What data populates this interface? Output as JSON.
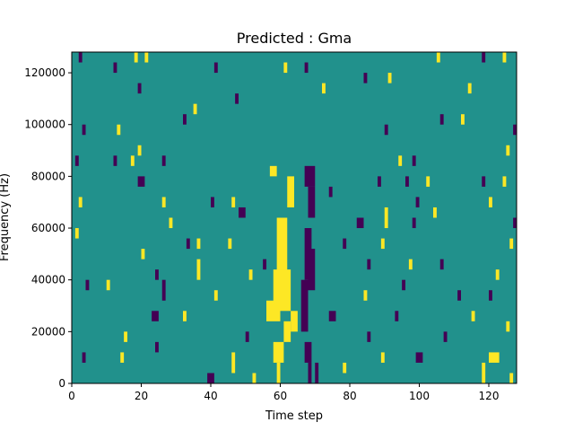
{
  "chart_data": {
    "type": "heatmap",
    "title": "Predicted : Gma",
    "xlabel": "Time step",
    "ylabel": "Frequency (Hz)",
    "xlim": [
      0,
      128
    ],
    "ylim": [
      0,
      128000
    ],
    "x_ticks": [
      0,
      20,
      40,
      60,
      80,
      100,
      120
    ],
    "x_tick_labels": [
      "0",
      "20",
      "40",
      "60",
      "80",
      "100",
      "120"
    ],
    "y_ticks": [
      0,
      20000,
      40000,
      60000,
      80000,
      100000,
      120000
    ],
    "y_tick_labels": [
      "0",
      "20000",
      "40000",
      "60000",
      "80000",
      "100000",
      "120000"
    ],
    "n_freq_bins": 128,
    "freq_bin_width_hz": 1000,
    "value_levels": [
      -1,
      0,
      1
    ],
    "colormap": {
      "-1": "#440154",
      "0": "#21918c",
      "1": "#fde725"
    },
    "background_value": 0,
    "grid": false,
    "legend": "none",
    "cells": [
      {
        "t": [
          2,
          3
        ],
        "f": [
          124000,
          128000
        ],
        "value": -1
      },
      {
        "t": [
          12,
          13
        ],
        "f": [
          120000,
          124000
        ],
        "value": -1
      },
      {
        "t": [
          18,
          19
        ],
        "f": [
          124000,
          128000
        ],
        "value": 1
      },
      {
        "t": [
          21,
          22
        ],
        "f": [
          124000,
          128000
        ],
        "value": 1
      },
      {
        "t": [
          41,
          42
        ],
        "f": [
          120000,
          124000
        ],
        "value": -1
      },
      {
        "t": [
          61,
          62
        ],
        "f": [
          120000,
          124000
        ],
        "value": 1
      },
      {
        "t": [
          67,
          68
        ],
        "f": [
          120000,
          124000
        ],
        "value": -1
      },
      {
        "t": [
          105,
          106
        ],
        "f": [
          124000,
          128000
        ],
        "value": 1
      },
      {
        "t": [
          118,
          119
        ],
        "f": [
          124000,
          128000
        ],
        "value": -1
      },
      {
        "t": [
          124,
          125
        ],
        "f": [
          124000,
          128000
        ],
        "value": 1
      },
      {
        "t": [
          19,
          20
        ],
        "f": [
          112000,
          116000
        ],
        "value": -1
      },
      {
        "t": [
          35,
          36
        ],
        "f": [
          104000,
          108000
        ],
        "value": 1
      },
      {
        "t": [
          47,
          48
        ],
        "f": [
          108000,
          112000
        ],
        "value": -1
      },
      {
        "t": [
          72,
          73
        ],
        "f": [
          112000,
          116000
        ],
        "value": 1
      },
      {
        "t": [
          84,
          85
        ],
        "f": [
          116000,
          120000
        ],
        "value": -1
      },
      {
        "t": [
          91,
          92
        ],
        "f": [
          116000,
          120000
        ],
        "value": 1
      },
      {
        "t": [
          114,
          115
        ],
        "f": [
          112000,
          116000
        ],
        "value": 1
      },
      {
        "t": [
          3,
          4
        ],
        "f": [
          96000,
          100000
        ],
        "value": -1
      },
      {
        "t": [
          13,
          14
        ],
        "f": [
          96000,
          100000
        ],
        "value": 1
      },
      {
        "t": [
          32,
          33
        ],
        "f": [
          100000,
          104000
        ],
        "value": -1
      },
      {
        "t": [
          90,
          91
        ],
        "f": [
          96000,
          100000
        ],
        "value": -1
      },
      {
        "t": [
          106,
          107
        ],
        "f": [
          100000,
          104000
        ],
        "value": -1
      },
      {
        "t": [
          112,
          113
        ],
        "f": [
          100000,
          104000
        ],
        "value": 1
      },
      {
        "t": [
          127,
          128
        ],
        "f": [
          96000,
          100000
        ],
        "value": -1
      },
      {
        "t": [
          1,
          2
        ],
        "f": [
          84000,
          88000
        ],
        "value": -1
      },
      {
        "t": [
          12,
          13
        ],
        "f": [
          84000,
          88000
        ],
        "value": -1
      },
      {
        "t": [
          17,
          18
        ],
        "f": [
          84000,
          88000
        ],
        "value": 1
      },
      {
        "t": [
          19,
          20
        ],
        "f": [
          88000,
          92000
        ],
        "value": 1
      },
      {
        "t": [
          26,
          27
        ],
        "f": [
          84000,
          88000
        ],
        "value": -1
      },
      {
        "t": [
          94,
          95
        ],
        "f": [
          84000,
          88000
        ],
        "value": 1
      },
      {
        "t": [
          98,
          99
        ],
        "f": [
          84000,
          88000
        ],
        "value": -1
      },
      {
        "t": [
          125,
          126
        ],
        "f": [
          88000,
          92000
        ],
        "value": 1
      },
      {
        "t": [
          19,
          21
        ],
        "f": [
          76000,
          80000
        ],
        "value": -1
      },
      {
        "t": [
          57,
          59
        ],
        "f": [
          80000,
          84000
        ],
        "value": 1
      },
      {
        "t": [
          67,
          70
        ],
        "f": [
          76000,
          84000
        ],
        "value": -1
      },
      {
        "t": [
          62,
          64
        ],
        "f": [
          68000,
          80000
        ],
        "value": 1
      },
      {
        "t": [
          68,
          70
        ],
        "f": [
          64000,
          76000
        ],
        "value": -1
      },
      {
        "t": [
          88,
          89
        ],
        "f": [
          76000,
          80000
        ],
        "value": -1
      },
      {
        "t": [
          96,
          97
        ],
        "f": [
          76000,
          80000
        ],
        "value": -1
      },
      {
        "t": [
          102,
          103
        ],
        "f": [
          76000,
          80000
        ],
        "value": 1
      },
      {
        "t": [
          118,
          119
        ],
        "f": [
          76000,
          80000
        ],
        "value": -1
      },
      {
        "t": [
          124,
          125
        ],
        "f": [
          76000,
          80000
        ],
        "value": 1
      },
      {
        "t": [
          2,
          3
        ],
        "f": [
          68000,
          72000
        ],
        "value": 1
      },
      {
        "t": [
          26,
          27
        ],
        "f": [
          68000,
          72000
        ],
        "value": 1
      },
      {
        "t": [
          40,
          41
        ],
        "f": [
          68000,
          72000
        ],
        "value": -1
      },
      {
        "t": [
          46,
          47
        ],
        "f": [
          68000,
          72000
        ],
        "value": 1
      },
      {
        "t": [
          74,
          75
        ],
        "f": [
          72000,
          76000
        ],
        "value": -1
      },
      {
        "t": [
          99,
          100
        ],
        "f": [
          68000,
          72000
        ],
        "value": -1
      },
      {
        "t": [
          120,
          121
        ],
        "f": [
          68000,
          72000
        ],
        "value": 1
      },
      {
        "t": [
          28,
          29
        ],
        "f": [
          60000,
          64000
        ],
        "value": 1
      },
      {
        "t": [
          48,
          50
        ],
        "f": [
          64000,
          68000
        ],
        "value": -1
      },
      {
        "t": [
          82,
          84
        ],
        "f": [
          60000,
          64000
        ],
        "value": -1
      },
      {
        "t": [
          90,
          91
        ],
        "f": [
          60000,
          68000
        ],
        "value": 1
      },
      {
        "t": [
          98,
          99
        ],
        "f": [
          60000,
          64000
        ],
        "value": -1
      },
      {
        "t": [
          104,
          105
        ],
        "f": [
          64000,
          68000
        ],
        "value": 1
      },
      {
        "t": [
          127,
          128
        ],
        "f": [
          60000,
          64000
        ],
        "value": -1
      },
      {
        "t": [
          59,
          62
        ],
        "f": [
          40000,
          64000
        ],
        "value": 1
      },
      {
        "t": [
          58,
          63
        ],
        "f": [
          28000,
          44000
        ],
        "value": 1
      },
      {
        "t": [
          56,
          60
        ],
        "f": [
          24000,
          32000
        ],
        "value": 1
      },
      {
        "t": [
          61,
          63
        ],
        "f": [
          16000,
          24000
        ],
        "value": 1
      },
      {
        "t": [
          58,
          61
        ],
        "f": [
          8000,
          16000
        ],
        "value": 1
      },
      {
        "t": [
          59,
          60
        ],
        "f": [
          0,
          8000
        ],
        "value": 1
      },
      {
        "t": [
          67,
          69
        ],
        "f": [
          40000,
          60000
        ],
        "value": -1
      },
      {
        "t": [
          68,
          70
        ],
        "f": [
          36000,
          52000
        ],
        "value": -1
      },
      {
        "t": [
          66,
          68
        ],
        "f": [
          20000,
          40000
        ],
        "value": -1
      },
      {
        "t": [
          67,
          69
        ],
        "f": [
          8000,
          16000
        ],
        "value": -1
      },
      {
        "t": [
          68,
          69
        ],
        "f": [
          0,
          8000
        ],
        "value": -1
      },
      {
        "t": [
          63,
          65
        ],
        "f": [
          20000,
          28000
        ],
        "value": 1
      },
      {
        "t": [
          1,
          2
        ],
        "f": [
          56000,
          60000
        ],
        "value": 1
      },
      {
        "t": [
          33,
          34
        ],
        "f": [
          52000,
          56000
        ],
        "value": -1
      },
      {
        "t": [
          36,
          37
        ],
        "f": [
          52000,
          56000
        ],
        "value": 1
      },
      {
        "t": [
          45,
          46
        ],
        "f": [
          52000,
          56000
        ],
        "value": 1
      },
      {
        "t": [
          78,
          79
        ],
        "f": [
          52000,
          56000
        ],
        "value": -1
      },
      {
        "t": [
          89,
          90
        ],
        "f": [
          52000,
          56000
        ],
        "value": 1
      },
      {
        "t": [
          126,
          127
        ],
        "f": [
          52000,
          56000
        ],
        "value": 1
      },
      {
        "t": [
          20,
          21
        ],
        "f": [
          48000,
          52000
        ],
        "value": 1
      },
      {
        "t": [
          24,
          25
        ],
        "f": [
          40000,
          44000
        ],
        "value": -1
      },
      {
        "t": [
          36,
          37
        ],
        "f": [
          40000,
          48000
        ],
        "value": 1
      },
      {
        "t": [
          51,
          52
        ],
        "f": [
          40000,
          44000
        ],
        "value": 1
      },
      {
        "t": [
          55,
          56
        ],
        "f": [
          44000,
          48000
        ],
        "value": -1
      },
      {
        "t": [
          85,
          86
        ],
        "f": [
          44000,
          48000
        ],
        "value": -1
      },
      {
        "t": [
          97,
          98
        ],
        "f": [
          44000,
          48000
        ],
        "value": 1
      },
      {
        "t": [
          106,
          107
        ],
        "f": [
          44000,
          48000
        ],
        "value": -1
      },
      {
        "t": [
          122,
          123
        ],
        "f": [
          40000,
          44000
        ],
        "value": 1
      },
      {
        "t": [
          4,
          5
        ],
        "f": [
          36000,
          40000
        ],
        "value": -1
      },
      {
        "t": [
          10,
          11
        ],
        "f": [
          36000,
          40000
        ],
        "value": 1
      },
      {
        "t": [
          26,
          27
        ],
        "f": [
          32000,
          40000
        ],
        "value": -1
      },
      {
        "t": [
          41,
          42
        ],
        "f": [
          32000,
          36000
        ],
        "value": 1
      },
      {
        "t": [
          84,
          85
        ],
        "f": [
          32000,
          36000
        ],
        "value": 1
      },
      {
        "t": [
          95,
          96
        ],
        "f": [
          36000,
          40000
        ],
        "value": -1
      },
      {
        "t": [
          111,
          112
        ],
        "f": [
          32000,
          36000
        ],
        "value": -1
      },
      {
        "t": [
          120,
          121
        ],
        "f": [
          32000,
          36000
        ],
        "value": -1
      },
      {
        "t": [
          23,
          25
        ],
        "f": [
          24000,
          28000
        ],
        "value": -1
      },
      {
        "t": [
          32,
          33
        ],
        "f": [
          24000,
          28000
        ],
        "value": 1
      },
      {
        "t": [
          74,
          76
        ],
        "f": [
          24000,
          28000
        ],
        "value": -1
      },
      {
        "t": [
          93,
          94
        ],
        "f": [
          24000,
          28000
        ],
        "value": -1
      },
      {
        "t": [
          115,
          116
        ],
        "f": [
          24000,
          28000
        ],
        "value": 1
      },
      {
        "t": [
          125,
          126
        ],
        "f": [
          20000,
          24000
        ],
        "value": 1
      },
      {
        "t": [
          15,
          16
        ],
        "f": [
          16000,
          20000
        ],
        "value": 1
      },
      {
        "t": [
          24,
          25
        ],
        "f": [
          12000,
          16000
        ],
        "value": -1
      },
      {
        "t": [
          50,
          51
        ],
        "f": [
          16000,
          20000
        ],
        "value": -1
      },
      {
        "t": [
          85,
          86
        ],
        "f": [
          16000,
          20000
        ],
        "value": -1
      },
      {
        "t": [
          107,
          108
        ],
        "f": [
          16000,
          20000
        ],
        "value": -1
      },
      {
        "t": [
          3,
          4
        ],
        "f": [
          8000,
          12000
        ],
        "value": -1
      },
      {
        "t": [
          14,
          15
        ],
        "f": [
          8000,
          12000
        ],
        "value": 1
      },
      {
        "t": [
          39,
          41
        ],
        "f": [
          0,
          4000
        ],
        "value": -1
      },
      {
        "t": [
          46,
          47
        ],
        "f": [
          4000,
          12000
        ],
        "value": 1
      },
      {
        "t": [
          89,
          90
        ],
        "f": [
          8000,
          12000
        ],
        "value": 1
      },
      {
        "t": [
          99,
          101
        ],
        "f": [
          8000,
          12000
        ],
        "value": -1
      },
      {
        "t": [
          120,
          123
        ],
        "f": [
          8000,
          12000
        ],
        "value": 1
      },
      {
        "t": [
          118,
          119
        ],
        "f": [
          0,
          8000
        ],
        "value": 1
      },
      {
        "t": [
          70,
          71
        ],
        "f": [
          0,
          8000
        ],
        "value": -1
      },
      {
        "t": [
          78,
          79
        ],
        "f": [
          4000,
          8000
        ],
        "value": 1
      },
      {
        "t": [
          52,
          53
        ],
        "f": [
          0,
          4000
        ],
        "value": 1
      },
      {
        "t": [
          126,
          127
        ],
        "f": [
          0,
          4000
        ],
        "value": 1
      }
    ]
  }
}
